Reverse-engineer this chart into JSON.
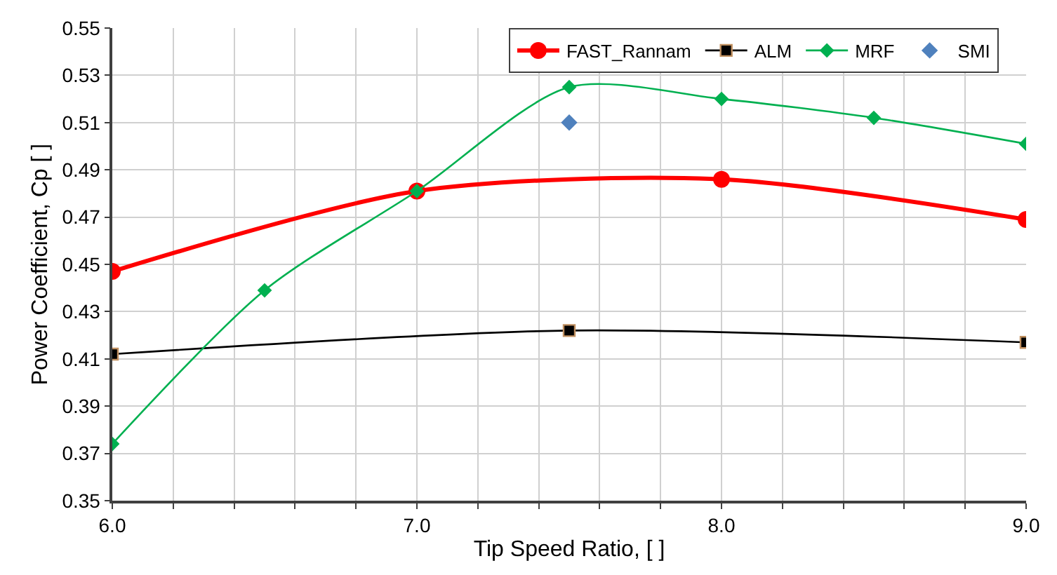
{
  "chart_data": {
    "type": "line",
    "xlabel": "Tip Speed Ratio, [ ]",
    "ylabel": "Power Coefficient, Cp [ ]",
    "xlim": [
      6.0,
      9.0
    ],
    "ylim": [
      0.35,
      0.55
    ],
    "xticks": [
      {
        "value": 6.0,
        "label": "6.0"
      },
      {
        "value": 6.2,
        "label": null
      },
      {
        "value": 6.4,
        "label": null
      },
      {
        "value": 6.6,
        "label": null
      },
      {
        "value": 6.8,
        "label": null
      },
      {
        "value": 7.0,
        "label": "7.0"
      },
      {
        "value": 7.2,
        "label": null
      },
      {
        "value": 7.4,
        "label": null
      },
      {
        "value": 7.6,
        "label": null
      },
      {
        "value": 7.8,
        "label": null
      },
      {
        "value": 8.0,
        "label": "8.0"
      },
      {
        "value": 8.2,
        "label": null
      },
      {
        "value": 8.4,
        "label": null
      },
      {
        "value": 8.6,
        "label": null
      },
      {
        "value": 8.8,
        "label": null
      },
      {
        "value": 9.0,
        "label": "9.0"
      }
    ],
    "yticks": [
      0.35,
      0.37,
      0.39,
      0.41,
      0.43,
      0.45,
      0.47,
      0.49,
      0.51,
      0.53,
      0.55
    ],
    "grid": true,
    "legend": "top right",
    "series": [
      {
        "name": "FAST_Rannam",
        "color": "#ff0000",
        "marker": "circle",
        "x": [
          6.0,
          7.0,
          8.0,
          9.0
        ],
        "values": [
          0.447,
          0.481,
          0.486,
          0.469
        ]
      },
      {
        "name": "ALM",
        "color": "#000000",
        "marker": "square",
        "x": [
          6.0,
          7.5,
          9.0
        ],
        "values": [
          0.412,
          0.422,
          0.417
        ]
      },
      {
        "name": "MRF",
        "color": "#00b050",
        "marker": "diamond",
        "x": [
          6.0,
          6.5,
          7.0,
          7.5,
          8.0,
          8.5,
          9.0
        ],
        "values": [
          0.374,
          0.439,
          0.481,
          0.525,
          0.52,
          0.512,
          0.501
        ]
      },
      {
        "name": "SMI",
        "color": "#4f81bd",
        "marker": "diamond",
        "type": "scatter",
        "x": [
          7.5
        ],
        "values": [
          0.51
        ]
      }
    ]
  }
}
